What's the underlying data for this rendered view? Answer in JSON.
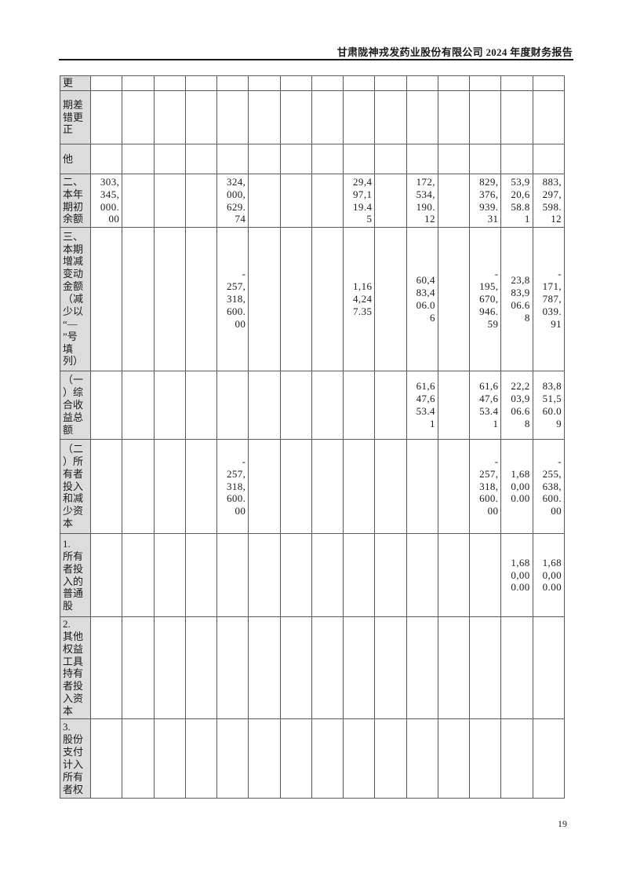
{
  "header": {
    "title": "甘肃陇神戎发药业股份有限公司 2024 年度财务报告"
  },
  "footer": {
    "page_number": "19"
  },
  "colors": {
    "label_bg": "#dcdcdc",
    "grid": "#595959",
    "header_rule": "#1a1a1a"
  },
  "table": {
    "description": "statement-of-changes-in-equity continuation grid, 1 label column + 15 data columns",
    "rows": [
      {
        "label": "更",
        "values": [
          "",
          "",
          "",
          "",
          "",
          "",
          "",
          "",
          "",
          "",
          "",
          "",
          "",
          "",
          ""
        ]
      },
      {
        "label": "期差\n错更\n正",
        "values": [
          "",
          "",
          "",
          "",
          "",
          "",
          "",
          "",
          "",
          "",
          "",
          "",
          "",
          "",
          ""
        ]
      },
      {
        "label": "他",
        "values": [
          "",
          "",
          "",
          "",
          "",
          "",
          "",
          "",
          "",
          "",
          "",
          "",
          "",
          "",
          ""
        ]
      },
      {
        "label": "二、\n本年\n期初\n余额",
        "values": [
          "303,345,000.00",
          "",
          "",
          "",
          "324,000,629.74",
          "",
          "",
          "",
          "29,497,119.45",
          "",
          "172,534,190.12",
          "",
          "829,376,939.31",
          "53,920,658.81",
          "883,297,598.12"
        ]
      },
      {
        "label": "三、\n本期\n增减\n变动\n金额\n（减\n少以\n“—\n”号\n填\n列）",
        "values": [
          "",
          "",
          "",
          "",
          "-257,318,600.00",
          "",
          "",
          "",
          "1,164,247.35",
          "",
          "60,483,406.06",
          "",
          "-195,670,946.59",
          "23,883,906.68",
          "-171,787,039.91"
        ]
      },
      {
        "label": "（一\n）综\n合收\n益总\n额",
        "values": [
          "",
          "",
          "",
          "",
          "",
          "",
          "",
          "",
          "",
          "",
          "61,647,653.41",
          "",
          "61,647,653.41",
          "22,203,906.68",
          "83,851,560.09"
        ]
      },
      {
        "label": "（二\n）所\n有者\n投入\n和减\n少资\n本",
        "values": [
          "",
          "",
          "",
          "",
          "-257,318,600.00",
          "",
          "",
          "",
          "",
          "",
          "",
          "",
          "-257,318,600.00",
          "1,680,000.00",
          "-255,638,600.00"
        ]
      },
      {
        "label": "1.\n所有\n者投\n入的\n普通\n股",
        "values": [
          "",
          "",
          "",
          "",
          "",
          "",
          "",
          "",
          "",
          "",
          "",
          "",
          "",
          "1,680,000.00",
          "1,680,000.00"
        ]
      },
      {
        "label": "2.\n其他\n权益\n工具\n持有\n者投\n入资\n本",
        "values": [
          "",
          "",
          "",
          "",
          "",
          "",
          "",
          "",
          "",
          "",
          "",
          "",
          "",
          "",
          ""
        ]
      },
      {
        "label": "3.\n股份\n支付\n计入\n所有\n者权",
        "values": [
          "",
          "",
          "",
          "",
          "",
          "",
          "",
          "",
          "",
          "",
          "",
          "",
          "",
          "",
          ""
        ]
      }
    ]
  }
}
